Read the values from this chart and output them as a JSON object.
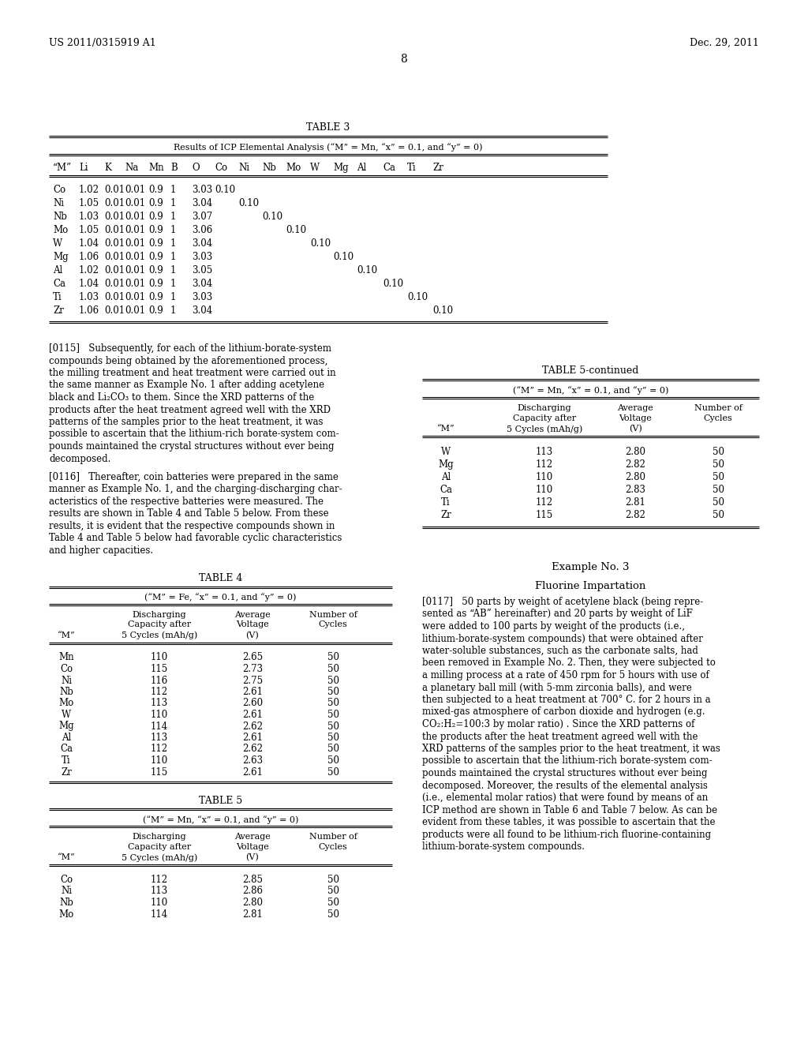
{
  "page_header_left": "US 2011/0315919 A1",
  "page_header_right": "Dec. 29, 2011",
  "page_number": "8",
  "background_color": "#ffffff",
  "text_color": "#000000",
  "table3_title": "TABLE 3",
  "table3_subtitle": "Results of ICP Elemental Analysis (“M” = Mn, “x” = 0.1, and “y” = 0)",
  "table3_headers": [
    "“M”",
    "Li",
    "K",
    "Na",
    "Mn",
    "B",
    "O",
    "Co",
    "Ni",
    "Nb",
    "Mo",
    "W",
    "Mg",
    "Al",
    "Ca",
    "Ti",
    "Zr"
  ],
  "table3_rows": [
    [
      "Co",
      "1.02",
      "0.01",
      "0.01",
      "0.9",
      "1",
      "3.03",
      "0.10",
      "",
      "",
      "",
      "",
      "",
      "",
      "",
      "",
      ""
    ],
    [
      "Ni",
      "1.05",
      "0.01",
      "0.01",
      "0.9",
      "1",
      "3.04",
      "",
      "0.10",
      "",
      "",
      "",
      "",
      "",
      "",
      "",
      ""
    ],
    [
      "Nb",
      "1.03",
      "0.01",
      "0.01",
      "0.9",
      "1",
      "3.07",
      "",
      "",
      "0.10",
      "",
      "",
      "",
      "",
      "",
      "",
      ""
    ],
    [
      "Mo",
      "1.05",
      "0.01",
      "0.01",
      "0.9",
      "1",
      "3.06",
      "",
      "",
      "",
      "0.10",
      "",
      "",
      "",
      "",
      "",
      ""
    ],
    [
      "W",
      "1.04",
      "0.01",
      "0.01",
      "0.9",
      "1",
      "3.04",
      "",
      "",
      "",
      "",
      "0.10",
      "",
      "",
      "",
      "",
      ""
    ],
    [
      "Mg",
      "1.06",
      "0.01",
      "0.01",
      "0.9",
      "1",
      "3.03",
      "",
      "",
      "",
      "",
      "",
      "0.10",
      "",
      "",
      "",
      ""
    ],
    [
      "Al",
      "1.02",
      "0.01",
      "0.01",
      "0.9",
      "1",
      "3.05",
      "",
      "",
      "",
      "",
      "",
      "",
      "0.10",
      "",
      "",
      ""
    ],
    [
      "Ca",
      "1.04",
      "0.01",
      "0.01",
      "0.9",
      "1",
      "3.04",
      "",
      "",
      "",
      "",
      "",
      "",
      "",
      "0.10",
      "",
      ""
    ],
    [
      "Ti",
      "1.03",
      "0.01",
      "0.01",
      "0.9",
      "1",
      "3.03",
      "",
      "",
      "",
      "",
      "",
      "",
      "",
      "",
      "0.10",
      ""
    ],
    [
      "Zr",
      "1.06",
      "0.01",
      "0.01",
      "0.9",
      "1",
      "3.04",
      "",
      "",
      "",
      "",
      "",
      "",
      "",
      "",
      "",
      "0.10"
    ]
  ],
  "para0115": "[0115]   Subsequently, for each of the lithium-borate-system compounds being obtained by the aforementioned process, the milling treatment and heat treatment were carried out in the same manner as Example No. 1 after adding acetylene black and Li₂CO₃ to them. Since the XRD patterns of the products after the heat treatment agreed well with the XRD patterns of the samples prior to the heat treatment, it was possible to ascertain that the lithium-rich borate-system com-pounds maintained the crystal structures without ever being decomposed.",
  "para0116": "[0116]   Thereafter, coin batteries were prepared in the same manner as Example No. 1, and the charging-discharging char-acteristics of the respective batteries were measured. The results are shown in Table 4 and Table 5 below. From these results, it is evident that the respective compounds shown in Table 4 and Table 5 below had favorable cyclic characteristics and higher capacities.",
  "table5cont_title": "TABLE 5-continued",
  "table5cont_subtitle": "(“M” = Mn, “x” = 0.1, and “y” = 0)",
  "table5cont_col1": "“M”",
  "table5cont_col2_line1": "Discharging",
  "table5cont_col2_line2": "Capacity after",
  "table5cont_col2_line3": "5 Cycles (mAh/g)",
  "table5cont_col3_line1": "Average",
  "table5cont_col3_line2": "Voltage",
  "table5cont_col3_line3": "(V)",
  "table5cont_col4_line1": "Number of",
  "table5cont_col4_line2": "Cycles",
  "table5cont_rows": [
    [
      "W",
      "113",
      "2.80",
      "50"
    ],
    [
      "Mg",
      "112",
      "2.82",
      "50"
    ],
    [
      "Al",
      "110",
      "2.80",
      "50"
    ],
    [
      "Ca",
      "110",
      "2.83",
      "50"
    ],
    [
      "Ti",
      "112",
      "2.81",
      "50"
    ],
    [
      "Zr",
      "115",
      "2.82",
      "50"
    ]
  ],
  "table4_title": "TABLE 4",
  "table4_subtitle": "(“M” = Fe, “x” = 0.1, and “y” = 0)",
  "table4_col1": "“M”",
  "table4_col2_line1": "Discharging",
  "table4_col2_line2": "Capacity after",
  "table4_col2_line3": "5 Cycles (mAh/g)",
  "table4_col3_line1": "Average",
  "table4_col3_line2": "Voltage",
  "table4_col3_line3": "(V)",
  "table4_col4_line1": "Number of",
  "table4_col4_line2": "Cycles",
  "table4_rows": [
    [
      "Mn",
      "110",
      "2.65",
      "50"
    ],
    [
      "Co",
      "115",
      "2.73",
      "50"
    ],
    [
      "Ni",
      "116",
      "2.75",
      "50"
    ],
    [
      "Nb",
      "112",
      "2.61",
      "50"
    ],
    [
      "Mo",
      "113",
      "2.60",
      "50"
    ],
    [
      "W",
      "110",
      "2.61",
      "50"
    ],
    [
      "Mg",
      "114",
      "2.62",
      "50"
    ],
    [
      "Al",
      "113",
      "2.61",
      "50"
    ],
    [
      "Ca",
      "112",
      "2.62",
      "50"
    ],
    [
      "Ti",
      "110",
      "2.63",
      "50"
    ],
    [
      "Zr",
      "115",
      "2.61",
      "50"
    ]
  ],
  "table5_title": "TABLE 5",
  "table5_subtitle": "(“M” = Mn, “x” = 0.1, and “y” = 0)",
  "table5_col1": "“M”",
  "table5_col2_line1": "Discharging",
  "table5_col2_line2": "Capacity after",
  "table5_col2_line3": "5 Cycles (mAh/g)",
  "table5_col3_line1": "Average",
  "table5_col3_line2": "Voltage",
  "table5_col3_line3": "(V)",
  "table5_col4_line1": "Number of",
  "table5_col4_line2": "Cycles",
  "table5_rows": [
    [
      "Co",
      "112",
      "2.85",
      "50"
    ],
    [
      "Ni",
      "113",
      "2.86",
      "50"
    ],
    [
      "Nb",
      "110",
      "2.80",
      "50"
    ],
    [
      "Mo",
      "114",
      "2.81",
      "50"
    ]
  ],
  "example3_heading": "Example No. 3",
  "example3_subheading": "Fluorine Impartation",
  "para0117": "[0117]   50 parts by weight of acetylene black (being repre-sented as “AB” hereinafter) and 20 parts by weight of LiF were added to 100 parts by weight of the products (i.e., lithium-borate-system compounds) that were obtained after water-soluble substances, such as the carbonate salts, had been removed in Example No. 2. Then, they were subjected to a milling process at a rate of 450 rpm for 5 hours with use of a planetary ball mill (with 5-mm zirconia balls), and were then subjected to a heat treatment at 700° C. for 2 hours in a mixed-gas atmosphere of carbon dioxide and hydrogen (e.g. CO₂:H₂=100:3 by molar ratio) . Since the XRD patterns of the products after the heat treatment agreed well with the XRD patterns of the samples prior to the heat treatment, it was possible to ascertain that the lithium-rich borate-system com-pounds maintained the crystal structures without ever being decomposed. Moreover, the results of the elemental analysis (i.e., elemental molar ratios) that were found by means of an ICP method are shown in Table 6 and Table 7 below. As can be evident from these tables, it was possible to ascertain that the products were all found to be lithium-rich fluorine-containing lithium-borate-system compounds."
}
